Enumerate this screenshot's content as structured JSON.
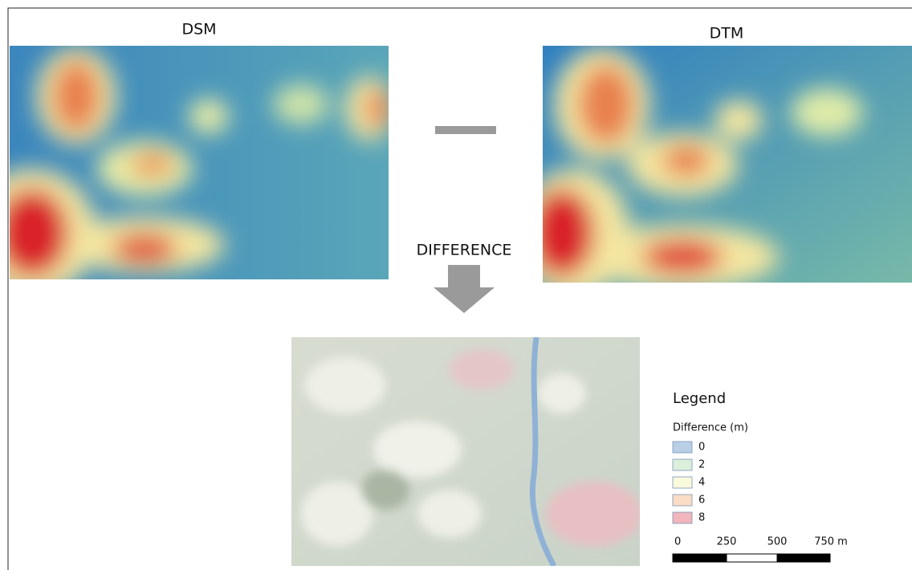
{
  "panels": {
    "left_title": "DSM",
    "right_title": "DTM",
    "operation": "DIFFERENCE"
  },
  "legend": {
    "title": "Legend",
    "subtitle": "Difference (m)",
    "items": [
      {
        "label": "0",
        "color": "#b9cfe6"
      },
      {
        "label": "2",
        "color": "#dcefdb"
      },
      {
        "label": "4",
        "color": "#f9f9dc"
      },
      {
        "label": "6",
        "color": "#fbdcc4"
      },
      {
        "label": "8",
        "color": "#f1b6bb"
      }
    ],
    "scale_labels": [
      "0",
      "250",
      "500",
      "750 m"
    ]
  }
}
